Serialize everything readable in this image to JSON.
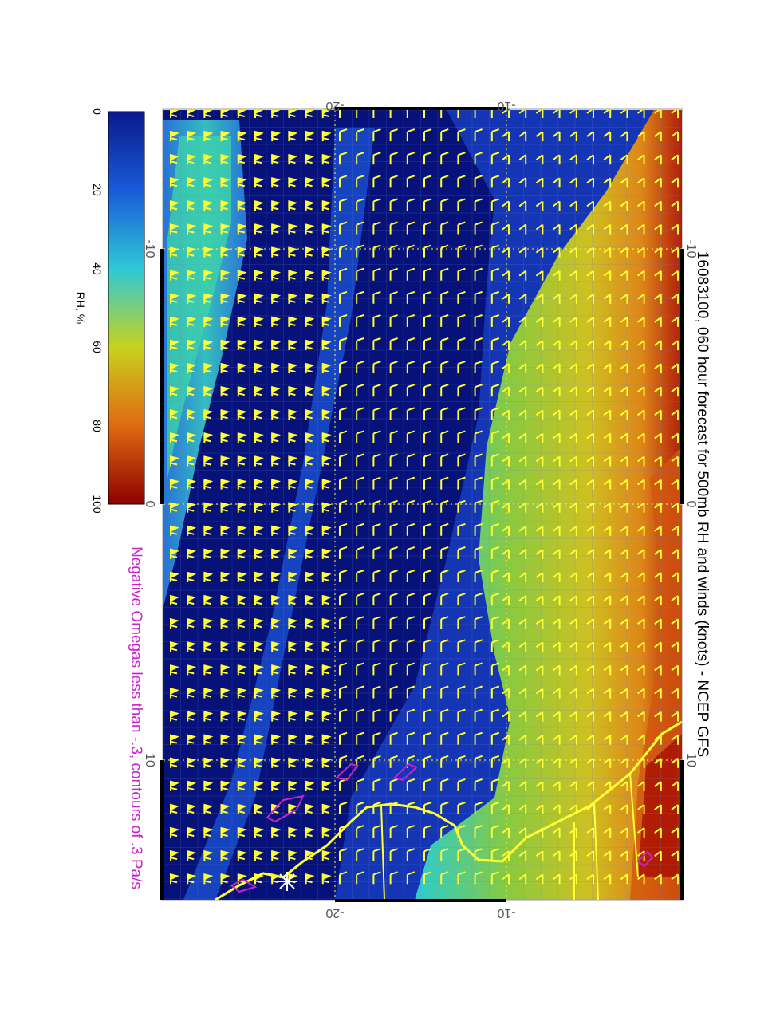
{
  "title": "16083100, 060 hour forecast for 500mb RH and winds (knots) - NCEP GFS",
  "omega_note": "Negative Omegas less than -.3, contours of .3 Pa/s",
  "colorbar": {
    "label": "RH, %",
    "ticks": [
      "0",
      "20",
      "40",
      "60",
      "80",
      "100"
    ],
    "colors": [
      "#0a1a8c",
      "#1a5ad8",
      "#2ec8d8",
      "#c8d21e",
      "#e06a10",
      "#8c0000"
    ]
  },
  "axes": {
    "top_ticks": [
      "-20",
      "-10"
    ],
    "bottom_ticks": [
      "-20",
      "-10"
    ],
    "left_ticks": [
      "-10",
      "0",
      "10"
    ],
    "right_ticks": [
      "-10",
      "0",
      "10"
    ]
  },
  "colors": {
    "barbs": "#ffff33",
    "coast": "#ffff33",
    "omega": "#cc22cc",
    "background_deep": "#06127a"
  }
}
